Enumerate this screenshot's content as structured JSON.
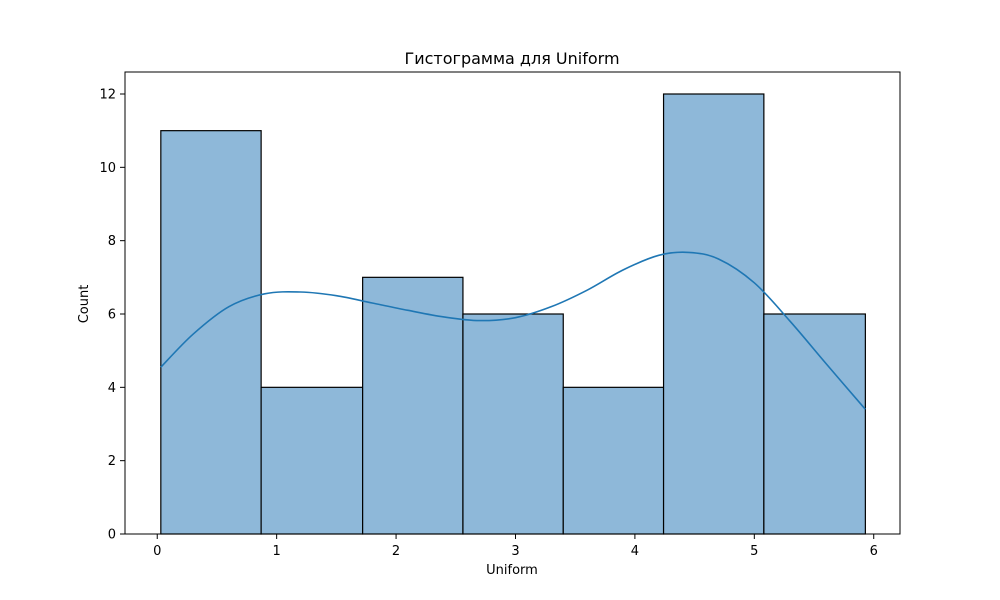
{
  "chart_data": {
    "type": "bar",
    "title": "Гистограмма для Uniform",
    "xlabel": "Uniform",
    "ylabel": "Count",
    "xlim": [
      -0.27,
      6.22
    ],
    "ylim": [
      0,
      12.6
    ],
    "x_ticks": [
      0,
      1,
      2,
      3,
      4,
      5,
      6
    ],
    "y_ticks": [
      0,
      2,
      4,
      6,
      8,
      10,
      12
    ],
    "bin_edges": [
      0.03,
      0.87,
      1.72,
      2.56,
      3.4,
      4.24,
      5.08,
      5.93
    ],
    "values": [
      11,
      4,
      7,
      6,
      4,
      12,
      6
    ],
    "kde": {
      "x": [
        0.03,
        0.3,
        0.6,
        0.9,
        1.2,
        1.5,
        1.8,
        2.1,
        2.4,
        2.7,
        3.0,
        3.3,
        3.6,
        3.9,
        4.2,
        4.45,
        4.7,
        5.0,
        5.3,
        5.6,
        5.93
      ],
      "y": [
        4.55,
        5.45,
        6.2,
        6.55,
        6.6,
        6.5,
        6.3,
        6.1,
        5.92,
        5.82,
        5.9,
        6.2,
        6.65,
        7.2,
        7.6,
        7.68,
        7.5,
        6.85,
        5.8,
        4.65,
        3.4
      ]
    },
    "colors": {
      "bar_fill": "#8eb8d9",
      "bar_edge": "#000000",
      "kde_line": "#1f77b4"
    },
    "grid": false
  }
}
